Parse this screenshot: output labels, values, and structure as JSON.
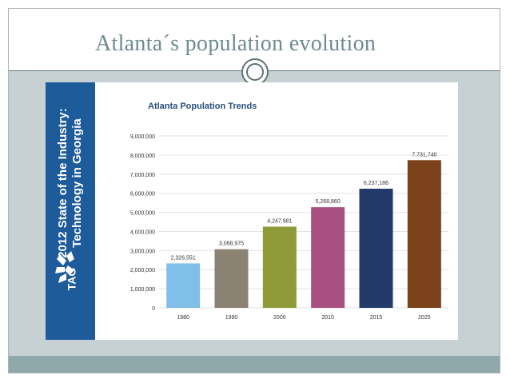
{
  "slide": {
    "title": "Atlanta´s population evolution"
  },
  "sidebar": {
    "line1": "2012 State of the Industry:",
    "line2": "Technology in Georgia",
    "logo_text": "TAG"
  },
  "colors": {
    "sidebar_blue": "#1e5b9b",
    "bar_colors": [
      "#7fbfe8",
      "#8a8273",
      "#8f9a38",
      "#a8507f",
      "#213a6a",
      "#7b4118"
    ]
  },
  "chart_data": {
    "type": "bar",
    "title": "Atlanta Population Trends",
    "categories": [
      "1980",
      "1990",
      "2000",
      "2010",
      "2015",
      "2025"
    ],
    "values": [
      2326551,
      3068975,
      4247981,
      5268860,
      6237186,
      7731740
    ],
    "value_labels": [
      "2,326,551",
      "3,068,975",
      "4,247,981",
      "5,268,860",
      "6,237,186",
      "7,731,740"
    ],
    "ylim": [
      0,
      9000000
    ],
    "yticks": [
      0,
      1000000,
      2000000,
      3000000,
      4000000,
      5000000,
      6000000,
      7000000,
      8000000,
      9000000
    ],
    "ytick_labels": [
      "0",
      "1,000,000",
      "2,000,000",
      "3,000,000",
      "4,000,000",
      "5,000,000",
      "6,000,000",
      "7,000,000",
      "8,000,000",
      "9,000,000"
    ],
    "grid": true,
    "xlabel": "",
    "ylabel": ""
  }
}
